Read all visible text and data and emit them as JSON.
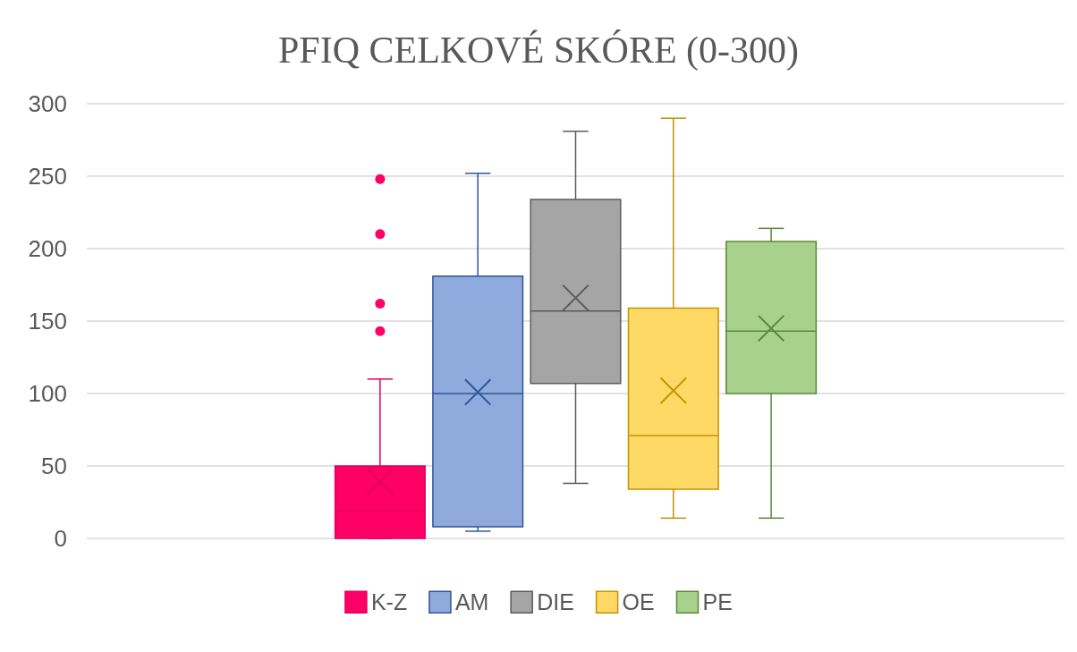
{
  "chart_data": {
    "type": "box",
    "title": "PFIQ CELKOVÉ SKÓRE (0-300)",
    "categories": [
      null
    ],
    "ylim": [
      0,
      300
    ],
    "yticks": [
      0,
      50,
      100,
      150,
      200,
      250,
      300
    ],
    "grid": "y",
    "legend": "bottom",
    "series": [
      {
        "name": "K-Z",
        "color": "#ff0066",
        "boxes": [
          {
            "low": 0,
            "q1": 0,
            "median": 19,
            "q3": 50,
            "high": 110,
            "mean": 39,
            "outliers": [
              143,
              162,
              210,
              248
            ]
          }
        ]
      },
      {
        "name": "AM",
        "color": "#8faadc",
        "boxes": [
          {
            "low": 5,
            "q1": 8,
            "median": 100,
            "q3": 181,
            "high": 252,
            "mean": 101
          }
        ]
      },
      {
        "name": "DIE",
        "color": "#a5a5a5",
        "boxes": [
          {
            "low": 38,
            "q1": 107,
            "median": 157,
            "q3": 234,
            "high": 281,
            "mean": 166
          }
        ]
      },
      {
        "name": "OE",
        "color": "#ffd966",
        "boxes": [
          {
            "low": 14,
            "q1": 34,
            "median": 71,
            "q3": 159,
            "high": 290,
            "mean": 102
          }
        ]
      },
      {
        "name": "PE",
        "color": "#a9d18e",
        "boxes": [
          {
            "low": 14,
            "q1": 100,
            "median": 143,
            "q3": 205,
            "high": 214,
            "mean": 145
          }
        ]
      }
    ]
  }
}
